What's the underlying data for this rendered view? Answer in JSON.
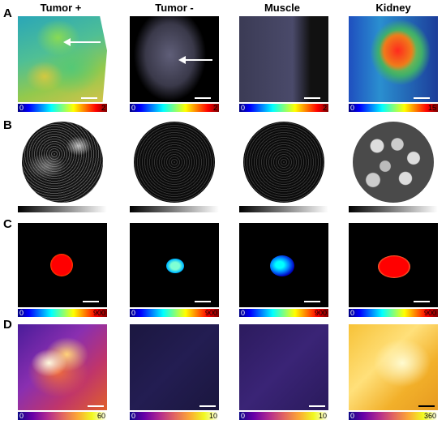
{
  "columns": [
    "Tumor +",
    "Tumor -",
    "Muscle",
    "Kidney"
  ],
  "rows": [
    "A",
    "B",
    "C",
    "D"
  ],
  "row_a": {
    "cbar_min": "0",
    "cbar_max": [
      "2",
      "2",
      "2",
      "15"
    ]
  },
  "row_c": {
    "cbar_min": "0",
    "cbar_max": [
      "900",
      "900",
      "900",
      "900"
    ]
  },
  "row_d": {
    "cbar_min": "0",
    "cbar_max": [
      "60",
      "10",
      "10",
      "360"
    ]
  },
  "icons": {
    "arrow": "arrow-left-icon"
  },
  "colors": {
    "scale_bar": "#ffffff",
    "background": "#ffffff"
  }
}
